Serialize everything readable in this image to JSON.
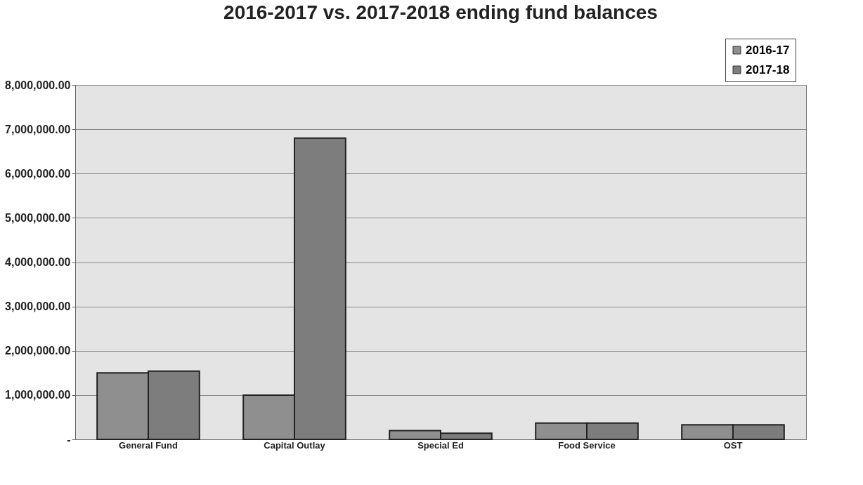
{
  "chart_data": {
    "type": "bar",
    "title": "2016-2017 vs. 2017-2018 ending fund balances",
    "categories": [
      "General Fund",
      "Capital Outlay",
      "Special Ed",
      "Food Service",
      "OST"
    ],
    "series": [
      {
        "name": "2016-17",
        "color": "#8f8f8f",
        "values": [
          1500000,
          1000000,
          200000,
          370000,
          330000
        ]
      },
      {
        "name": "2017-18",
        "color": "#7d7d7d",
        "values": [
          1540000,
          6800000,
          140000,
          370000,
          330000
        ]
      }
    ],
    "ylim": [
      0,
      8000000
    ],
    "yticks": [
      {
        "value": 0,
        "label": "-"
      },
      {
        "value": 1000000,
        "label": "1,000,000.00"
      },
      {
        "value": 2000000,
        "label": "2,000,000.00"
      },
      {
        "value": 3000000,
        "label": "3,000,000.00"
      },
      {
        "value": 4000000,
        "label": "4,000,000.00"
      },
      {
        "value": 5000000,
        "label": "5,000,000.00"
      },
      {
        "value": 6000000,
        "label": "6,000,000.00"
      },
      {
        "value": 7000000,
        "label": "7,000,000.00"
      },
      {
        "value": 8000000,
        "label": "8,000,000.00"
      }
    ],
    "grid": "y",
    "legend": "top right"
  }
}
